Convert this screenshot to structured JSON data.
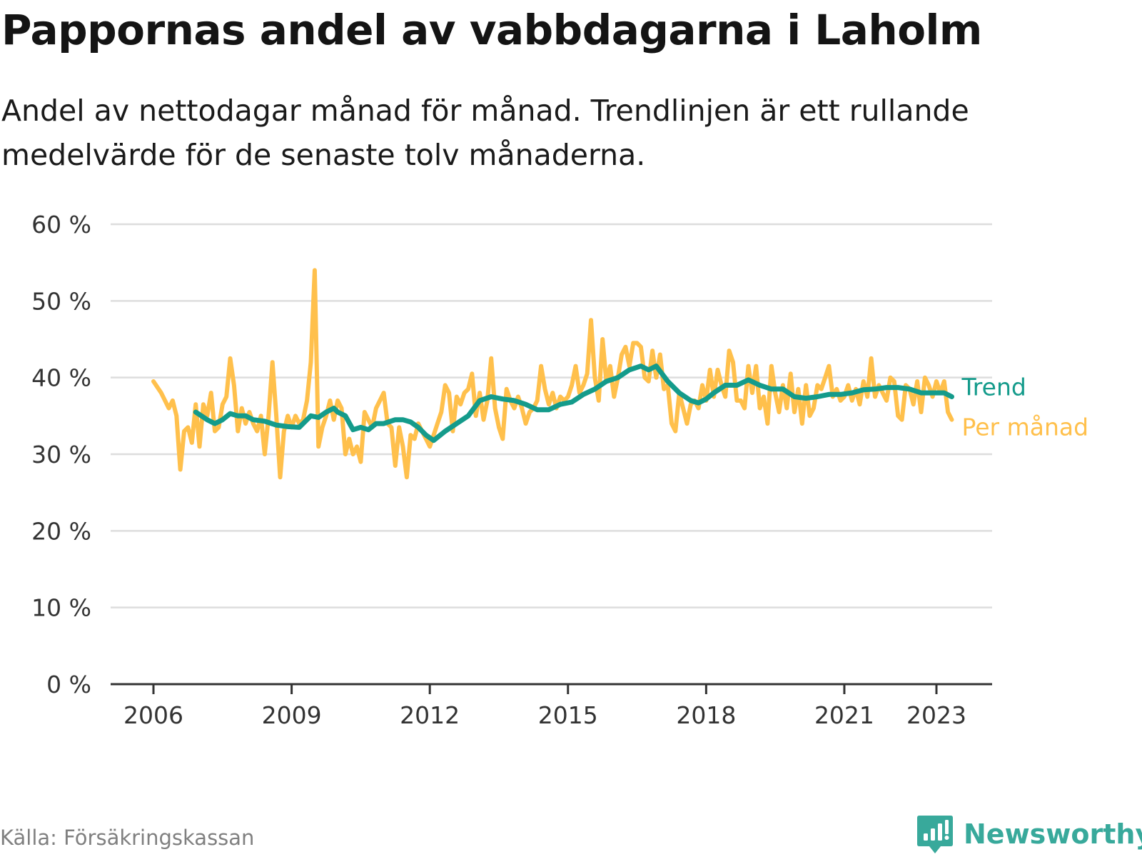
{
  "title": "Pappornas andel av vabbdagarna i Laholm",
  "subtitle": "Andel av nettodagar månad för månad. Trendlinjen är ett rullande medelvärde för de senaste tolv månaderna.",
  "source": "Källa: Försäkringskassan",
  "brand": {
    "name": "Newsworthy",
    "icon": "newsworthy-logo-icon",
    "color": "#38a99b"
  },
  "chart_data": {
    "type": "line",
    "title": "Pappornas andel av vabbdagarna i Laholm",
    "subtitle": "Andel av nettodagar månad för månad. Trendlinjen är ett rullande medelvärde för de senaste tolv månaderna.",
    "xlabel": "",
    "ylabel": "",
    "x_axis": {
      "type": "date",
      "range": [
        "2005-09",
        "2024-09"
      ],
      "ticks": [
        "2006-01",
        "2009-01",
        "2012-01",
        "2015-01",
        "2018-01",
        "2021-01",
        "2023-01"
      ],
      "tick_labels": [
        "2006",
        "2009",
        "2012",
        "2015",
        "2018",
        "2021",
        "2023"
      ]
    },
    "y_axis": {
      "range": [
        0,
        60
      ],
      "ticks": [
        0,
        10,
        20,
        30,
        40,
        50,
        60
      ],
      "tick_labels": [
        "0 %",
        "10 %",
        "20 %",
        "30 %",
        "40 %",
        "50 %",
        "60 %"
      ]
    },
    "grid": "horizontal",
    "legend": "direct labels at line ends (right)",
    "series": [
      {
        "name": "Per månad",
        "color": "#ffc04c",
        "points": [
          [
            "2006-01",
            39.5
          ],
          [
            "2006-03",
            38
          ],
          [
            "2006-05",
            36
          ],
          [
            "2006-06",
            37
          ],
          [
            "2006-07",
            35
          ],
          [
            "2006-08",
            28
          ],
          [
            "2006-09",
            33
          ],
          [
            "2006-10",
            33.5
          ],
          [
            "2006-11",
            31.5
          ],
          [
            "2006-12",
            36.5
          ],
          [
            "2007-01",
            31
          ],
          [
            "2007-02",
            36.5
          ],
          [
            "2007-03",
            35
          ],
          [
            "2007-04",
            38
          ],
          [
            "2007-05",
            33
          ],
          [
            "2007-06",
            33.5
          ],
          [
            "2007-07",
            36.5
          ],
          [
            "2007-08",
            37.5
          ],
          [
            "2007-09",
            42.5
          ],
          [
            "2007-10",
            39
          ],
          [
            "2007-11",
            33
          ],
          [
            "2007-12",
            36
          ],
          [
            "2008-01",
            34
          ],
          [
            "2008-02",
            35.5
          ],
          [
            "2008-03",
            34
          ],
          [
            "2008-04",
            33
          ],
          [
            "2008-05",
            35
          ],
          [
            "2008-06",
            30
          ],
          [
            "2008-07",
            35
          ],
          [
            "2008-08",
            42
          ],
          [
            "2008-09",
            35
          ],
          [
            "2008-10",
            27
          ],
          [
            "2008-11",
            33
          ],
          [
            "2008-12",
            35
          ],
          [
            "2009-01",
            33.5
          ],
          [
            "2009-02",
            35
          ],
          [
            "2009-03",
            34
          ],
          [
            "2009-04",
            34.5
          ],
          [
            "2009-05",
            37
          ],
          [
            "2009-06",
            42
          ],
          [
            "2009-07",
            54
          ],
          [
            "2009-08",
            31
          ],
          [
            "2009-09",
            33.5
          ],
          [
            "2009-10",
            35
          ],
          [
            "2009-11",
            37
          ],
          [
            "2009-12",
            34.5
          ],
          [
            "2010-01",
            37
          ],
          [
            "2010-02",
            36
          ],
          [
            "2010-03",
            30
          ],
          [
            "2010-04",
            32
          ],
          [
            "2010-05",
            30
          ],
          [
            "2010-06",
            31
          ],
          [
            "2010-07",
            29
          ],
          [
            "2010-08",
            35.5
          ],
          [
            "2010-09",
            34.5
          ],
          [
            "2010-10",
            33.5
          ],
          [
            "2010-11",
            36
          ],
          [
            "2010-12",
            37
          ],
          [
            "2011-01",
            38
          ],
          [
            "2011-02",
            34
          ],
          [
            "2011-03",
            33.5
          ],
          [
            "2011-04",
            28.5
          ],
          [
            "2011-05",
            33.5
          ],
          [
            "2011-06",
            31
          ],
          [
            "2011-07",
            27
          ],
          [
            "2011-08",
            32.5
          ],
          [
            "2011-09",
            32
          ],
          [
            "2011-10",
            34
          ],
          [
            "2011-11",
            33
          ],
          [
            "2011-12",
            32
          ],
          [
            "2012-01",
            31
          ],
          [
            "2012-02",
            32.5
          ],
          [
            "2012-03",
            34
          ],
          [
            "2012-04",
            35.5
          ],
          [
            "2012-05",
            39
          ],
          [
            "2012-06",
            38
          ],
          [
            "2012-07",
            33
          ],
          [
            "2012-08",
            37.5
          ],
          [
            "2012-09",
            36.5
          ],
          [
            "2012-10",
            38
          ],
          [
            "2012-11",
            38.5
          ],
          [
            "2012-12",
            40.5
          ],
          [
            "2013-01",
            35
          ],
          [
            "2013-02",
            38
          ],
          [
            "2013-03",
            34.5
          ],
          [
            "2013-04",
            37
          ],
          [
            "2013-05",
            42.5
          ],
          [
            "2013-06",
            36
          ],
          [
            "2013-07",
            33.5
          ],
          [
            "2013-08",
            32
          ],
          [
            "2013-09",
            38.5
          ],
          [
            "2013-10",
            37
          ],
          [
            "2013-11",
            36
          ],
          [
            "2013-12",
            37.5
          ],
          [
            "2014-01",
            36
          ],
          [
            "2014-02",
            34
          ],
          [
            "2014-03",
            35.5
          ],
          [
            "2014-04",
            36
          ],
          [
            "2014-05",
            37
          ],
          [
            "2014-06",
            41.5
          ],
          [
            "2014-07",
            38.5
          ],
          [
            "2014-08",
            36.5
          ],
          [
            "2014-09",
            38
          ],
          [
            "2014-10",
            36
          ],
          [
            "2014-11",
            37.5
          ],
          [
            "2014-12",
            37
          ],
          [
            "2015-01",
            37.5
          ],
          [
            "2015-02",
            39
          ],
          [
            "2015-03",
            41.5
          ],
          [
            "2015-04",
            38
          ],
          [
            "2015-05",
            39
          ],
          [
            "2015-06",
            40.5
          ],
          [
            "2015-07",
            47.5
          ],
          [
            "2015-08",
            40
          ],
          [
            "2015-09",
            37
          ],
          [
            "2015-10",
            45
          ],
          [
            "2015-11",
            39.5
          ],
          [
            "2015-12",
            41.5
          ],
          [
            "2016-01",
            37.5
          ],
          [
            "2016-02",
            40
          ],
          [
            "2016-03",
            43
          ],
          [
            "2016-04",
            44
          ],
          [
            "2016-05",
            41.5
          ],
          [
            "2016-06",
            44.5
          ],
          [
            "2016-07",
            44.5
          ],
          [
            "2016-08",
            44
          ],
          [
            "2016-09",
            40
          ],
          [
            "2016-10",
            39.5
          ],
          [
            "2016-11",
            43.5
          ],
          [
            "2016-12",
            40
          ],
          [
            "2017-01",
            43
          ],
          [
            "2017-02",
            38.5
          ],
          [
            "2017-03",
            39
          ],
          [
            "2017-04",
            34
          ],
          [
            "2017-05",
            33
          ],
          [
            "2017-06",
            38
          ],
          [
            "2017-07",
            36
          ],
          [
            "2017-08",
            34
          ],
          [
            "2017-09",
            36.5
          ],
          [
            "2017-10",
            37
          ],
          [
            "2017-11",
            36
          ],
          [
            "2017-12",
            39
          ],
          [
            "2018-01",
            37
          ],
          [
            "2018-02",
            41
          ],
          [
            "2018-03",
            37.5
          ],
          [
            "2018-04",
            41
          ],
          [
            "2018-05",
            39
          ],
          [
            "2018-06",
            37.5
          ],
          [
            "2018-07",
            43.5
          ],
          [
            "2018-08",
            42
          ],
          [
            "2018-09",
            37
          ],
          [
            "2018-10",
            37
          ],
          [
            "2018-11",
            36
          ],
          [
            "2018-12",
            41.5
          ],
          [
            "2019-01",
            38
          ],
          [
            "2019-02",
            41.5
          ],
          [
            "2019-03",
            36
          ],
          [
            "2019-04",
            37.5
          ],
          [
            "2019-05",
            34
          ],
          [
            "2019-06",
            41.5
          ],
          [
            "2019-07",
            38
          ],
          [
            "2019-08",
            35.5
          ],
          [
            "2019-09",
            39
          ],
          [
            "2019-10",
            36
          ],
          [
            "2019-11",
            40.5
          ],
          [
            "2019-12",
            35.5
          ],
          [
            "2020-01",
            38.5
          ],
          [
            "2020-02",
            34
          ],
          [
            "2020-03",
            39
          ],
          [
            "2020-04",
            35
          ],
          [
            "2020-05",
            36
          ],
          [
            "2020-06",
            39
          ],
          [
            "2020-07",
            38.5
          ],
          [
            "2020-08",
            40
          ],
          [
            "2020-09",
            41.5
          ],
          [
            "2020-10",
            37.5
          ],
          [
            "2020-11",
            38.5
          ],
          [
            "2020-12",
            37
          ],
          [
            "2021-01",
            37.5
          ],
          [
            "2021-02",
            39
          ],
          [
            "2021-03",
            37
          ],
          [
            "2021-04",
            38.5
          ],
          [
            "2021-05",
            36.5
          ],
          [
            "2021-06",
            39.5
          ],
          [
            "2021-07",
            37.5
          ],
          [
            "2021-08",
            42.5
          ],
          [
            "2021-09",
            37.5
          ],
          [
            "2021-10",
            39
          ],
          [
            "2021-11",
            38
          ],
          [
            "2021-12",
            37
          ],
          [
            "2022-01",
            40
          ],
          [
            "2022-02",
            39.5
          ],
          [
            "2022-03",
            35
          ],
          [
            "2022-04",
            34.5
          ],
          [
            "2022-05",
            39
          ],
          [
            "2022-06",
            38.5
          ],
          [
            "2022-07",
            36.5
          ],
          [
            "2022-08",
            39.5
          ],
          [
            "2022-09",
            35.5
          ],
          [
            "2022-10",
            40
          ],
          [
            "2022-11",
            39
          ],
          [
            "2022-12",
            37.5
          ],
          [
            "2023-01",
            39.5
          ],
          [
            "2023-02",
            38
          ],
          [
            "2023-03",
            39.5
          ],
          [
            "2023-04",
            35.5
          ],
          [
            "2023-05",
            34.5
          ]
        ]
      },
      {
        "name": "Trend",
        "color": "#149b8b",
        "points": [
          [
            "2006-12",
            35.5
          ],
          [
            "2007-03",
            34.5
          ],
          [
            "2007-05",
            34
          ],
          [
            "2007-07",
            34.5
          ],
          [
            "2007-09",
            35.3
          ],
          [
            "2007-11",
            35
          ],
          [
            "2008-01",
            35
          ],
          [
            "2008-03",
            34.5
          ],
          [
            "2008-06",
            34.3
          ],
          [
            "2008-09",
            33.8
          ],
          [
            "2008-12",
            33.6
          ],
          [
            "2009-03",
            33.5
          ],
          [
            "2009-06",
            35
          ],
          [
            "2009-08",
            34.8
          ],
          [
            "2009-10",
            35.5
          ],
          [
            "2009-12",
            36
          ],
          [
            "2010-01",
            35.5
          ],
          [
            "2010-03",
            35
          ],
          [
            "2010-05",
            33.2
          ],
          [
            "2010-07",
            33.5
          ],
          [
            "2010-09",
            33.2
          ],
          [
            "2010-11",
            34
          ],
          [
            "2011-01",
            34
          ],
          [
            "2011-04",
            34.5
          ],
          [
            "2011-06",
            34.5
          ],
          [
            "2011-08",
            34.2
          ],
          [
            "2011-10",
            33.5
          ],
          [
            "2011-12",
            32.5
          ],
          [
            "2012-02",
            31.8
          ],
          [
            "2012-05",
            33
          ],
          [
            "2012-08",
            34
          ],
          [
            "2012-11",
            35
          ],
          [
            "2013-02",
            37
          ],
          [
            "2013-05",
            37.5
          ],
          [
            "2013-08",
            37.2
          ],
          [
            "2013-11",
            37
          ],
          [
            "2014-02",
            36.5
          ],
          [
            "2014-05",
            35.8
          ],
          [
            "2014-08",
            35.8
          ],
          [
            "2014-11",
            36.5
          ],
          [
            "2015-02",
            36.8
          ],
          [
            "2015-05",
            37.8
          ],
          [
            "2015-08",
            38.5
          ],
          [
            "2015-11",
            39.5
          ],
          [
            "2016-02",
            40
          ],
          [
            "2016-05",
            41
          ],
          [
            "2016-08",
            41.5
          ],
          [
            "2016-10",
            41
          ],
          [
            "2016-12",
            41.5
          ],
          [
            "2017-03",
            39.5
          ],
          [
            "2017-06",
            38
          ],
          [
            "2017-09",
            37
          ],
          [
            "2017-11",
            36.7
          ],
          [
            "2018-01",
            37.2
          ],
          [
            "2018-03",
            38
          ],
          [
            "2018-06",
            39
          ],
          [
            "2018-09",
            39
          ],
          [
            "2018-12",
            39.7
          ],
          [
            "2019-03",
            39
          ],
          [
            "2019-06",
            38.5
          ],
          [
            "2019-09",
            38.5
          ],
          [
            "2019-12",
            37.5
          ],
          [
            "2020-03",
            37.3
          ],
          [
            "2020-06",
            37.5
          ],
          [
            "2020-09",
            37.8
          ],
          [
            "2020-12",
            37.8
          ],
          [
            "2021-03",
            38
          ],
          [
            "2021-06",
            38.4
          ],
          [
            "2021-09",
            38.5
          ],
          [
            "2021-12",
            38.7
          ],
          [
            "2022-03",
            38.7
          ],
          [
            "2022-06",
            38.5
          ],
          [
            "2022-09",
            38
          ],
          [
            "2022-12",
            38
          ],
          [
            "2023-03",
            38
          ],
          [
            "2023-05",
            37.5
          ]
        ]
      }
    ]
  }
}
